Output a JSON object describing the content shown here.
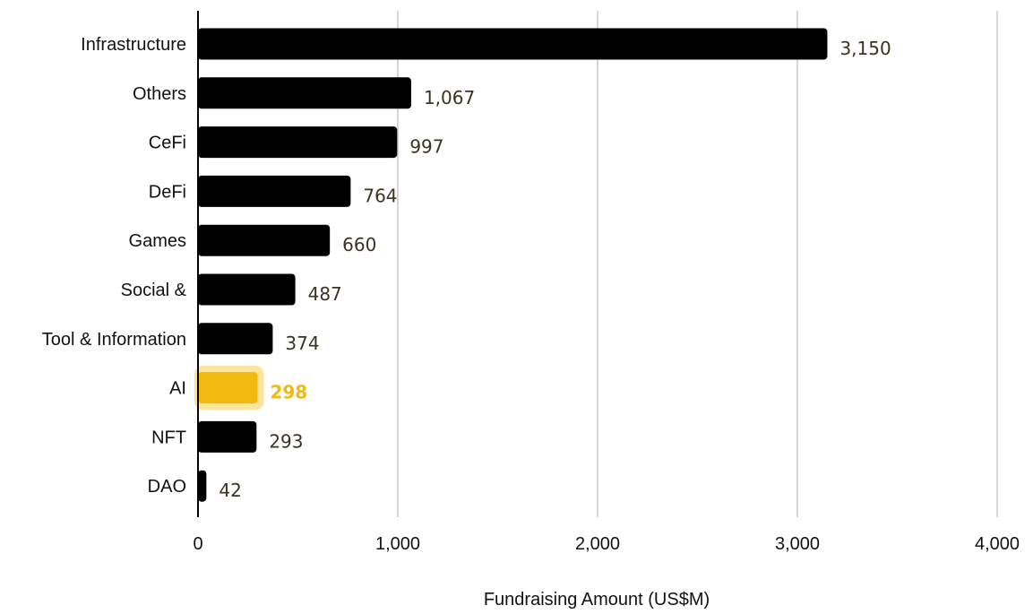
{
  "chart_data": {
    "type": "bar",
    "orientation": "horizontal",
    "title": "",
    "xlabel": "Fundraising Amount (US$M)",
    "ylabel": "",
    "xlim": [
      0,
      4000
    ],
    "x_ticks": [
      0,
      1000,
      2000,
      3000,
      4000
    ],
    "x_tick_labels": [
      "0",
      "1,000",
      "2,000",
      "3,000",
      "4,000"
    ],
    "grid": "vertical",
    "legend": "none",
    "categories": [
      "Infrastructure",
      "Others",
      "CeFi",
      "DeFi",
      "Games",
      "Social &",
      "Tool & Information",
      "AI",
      "NFT",
      "DAO"
    ],
    "values": [
      3150,
      1067,
      997,
      764,
      660,
      487,
      374,
      298,
      293,
      42
    ],
    "value_labels": [
      "3,150",
      "1,067",
      "997",
      "764",
      "660",
      "487",
      "374",
      "298",
      "293",
      "42"
    ],
    "highlight": {
      "category": "AI",
      "color": "#f2b90f",
      "glow": "#fbe59a"
    },
    "colors": {
      "bar": "#000000",
      "value_label": "#3a3320",
      "grid": "#c8c8c8",
      "axis": "#000000"
    }
  }
}
